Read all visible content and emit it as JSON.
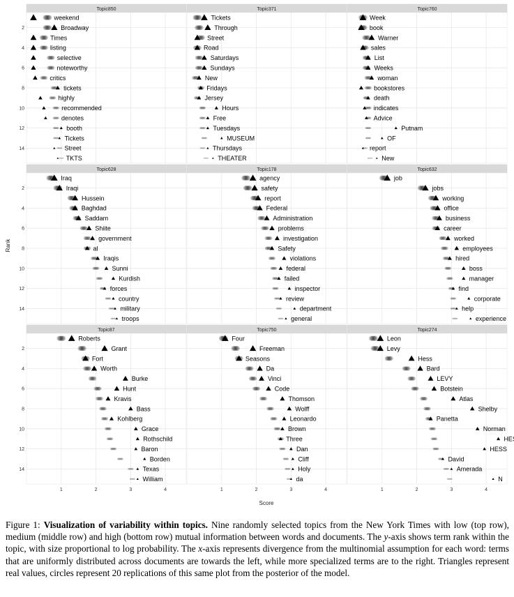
{
  "chart_data": {
    "type": "scatter",
    "xlabel": "Score",
    "ylabel": "Rank",
    "xlim": [
      0,
      4.6
    ],
    "ylim": [
      15.5,
      0.5
    ],
    "x_ticks": [
      1,
      2,
      3,
      4
    ],
    "y_ticks": [
      2,
      4,
      6,
      8,
      10,
      12,
      14
    ],
    "grid": true,
    "legend": "none",
    "markers": {
      "real": "triangle",
      "replications": "circle"
    },
    "panels": [
      {
        "name": "Topic850",
        "terms": [
          {
            "rank": 1,
            "term": "weekend",
            "real": 0.2,
            "rep": 0.6
          },
          {
            "rank": 2,
            "term": "Broadway",
            "real": 0.8,
            "rep": 0.6
          },
          {
            "rank": 3,
            "term": "Times",
            "real": 0.2,
            "rep": 0.5
          },
          {
            "rank": 4,
            "term": "listing",
            "real": 0.2,
            "rep": 0.5
          },
          {
            "rank": 5,
            "term": "selective",
            "real": 0.2,
            "rep": 0.7
          },
          {
            "rank": 6,
            "term": "noteworthy",
            "real": 0.2,
            "rep": 0.7
          },
          {
            "rank": 7,
            "term": "critics",
            "real": 0.25,
            "rep": 0.5
          },
          {
            "rank": 8,
            "term": "tickets",
            "real": 0.9,
            "rep": 0.8
          },
          {
            "rank": 9,
            "term": "highly",
            "real": 0.4,
            "rep": 0.75
          },
          {
            "rank": 10,
            "term": "recommended",
            "real": 0.5,
            "rep": 0.85
          },
          {
            "rank": 11,
            "term": "denotes",
            "real": 0.55,
            "rep": 0.85
          },
          {
            "rank": 12,
            "term": "booth",
            "real": 1.0,
            "rep": 0.85
          },
          {
            "rank": 13,
            "term": "Tickets",
            "real": 0.95,
            "rep": 0.85
          },
          {
            "rank": 14,
            "term": "Street",
            "real": 0.8,
            "rep": 0.95
          },
          {
            "rank": 15,
            "term": "TKTS",
            "real": 0.9,
            "rep": 1.0
          }
        ]
      },
      {
        "name": "Topic371",
        "terms": [
          {
            "rank": 1,
            "term": "Tickets",
            "real": 0.5,
            "rep": 0.3
          },
          {
            "rank": 2,
            "term": "Through",
            "real": 0.6,
            "rep": 0.35
          },
          {
            "rank": 3,
            "term": "Street",
            "real": 0.3,
            "rep": 0.4
          },
          {
            "rank": 4,
            "term": "Road",
            "real": 0.3,
            "rep": 0.3
          },
          {
            "rank": 5,
            "term": "Saturdays",
            "real": 0.5,
            "rep": 0.35
          },
          {
            "rank": 6,
            "term": "Sundays",
            "real": 0.5,
            "rep": 0.35
          },
          {
            "rank": 7,
            "term": "New",
            "real": 0.35,
            "rep": 0.25
          },
          {
            "rank": 8,
            "term": "Fridays",
            "real": 0.4,
            "rep": 0.4
          },
          {
            "rank": 9,
            "term": "Jersey",
            "real": 0.35,
            "rep": 0.3
          },
          {
            "rank": 10,
            "term": "Hours",
            "real": 0.85,
            "rep": 0.45
          },
          {
            "rank": 11,
            "term": "Free",
            "real": 0.6,
            "rep": 0.45
          },
          {
            "rank": 12,
            "term": "Tuesdays",
            "real": 0.6,
            "rep": 0.45
          },
          {
            "rank": 13,
            "term": "MUSEUM",
            "real": 1.0,
            "rep": 0.5
          },
          {
            "rank": 14,
            "term": "Thursdays",
            "real": 0.6,
            "rep": 0.45
          },
          {
            "rank": 15,
            "term": "THEATER",
            "real": 0.75,
            "rep": 0.55
          }
        ]
      },
      {
        "name": "Topic760",
        "terms": [
          {
            "rank": 1,
            "term": "Week",
            "real": 0.45,
            "rep": 0.45
          },
          {
            "rank": 2,
            "term": "book",
            "real": 0.4,
            "rep": 0.45
          },
          {
            "rank": 3,
            "term": "Warner",
            "real": 0.7,
            "rep": 0.55
          },
          {
            "rank": 4,
            "term": "sales",
            "real": 0.45,
            "rep": 0.5
          },
          {
            "rank": 5,
            "term": "List",
            "real": 0.6,
            "rep": 0.55
          },
          {
            "rank": 6,
            "term": "Weeks",
            "real": 0.6,
            "rep": 0.55
          },
          {
            "rank": 7,
            "term": "woman",
            "real": 0.7,
            "rep": 0.6
          },
          {
            "rank": 8,
            "term": "bookstores",
            "real": 0.4,
            "rep": 0.6
          },
          {
            "rank": 9,
            "term": "death",
            "real": 0.6,
            "rep": 0.55
          },
          {
            "rank": 10,
            "term": "indicates",
            "real": 0.5,
            "rep": 0.6
          },
          {
            "rank": 11,
            "term": "Advice",
            "real": 0.55,
            "rep": 0.6
          },
          {
            "rank": 12,
            "term": "Putnam",
            "real": 1.4,
            "rep": 0.6
          },
          {
            "rank": 13,
            "term": "OF",
            "real": 1.0,
            "rep": 0.6
          },
          {
            "rank": 14,
            "term": "report",
            "real": 0.45,
            "rep": 0.5
          },
          {
            "rank": 15,
            "term": "New",
            "real": 0.85,
            "rep": 0.65
          }
        ]
      },
      {
        "name": "Topic628",
        "terms": [
          {
            "rank": 1,
            "term": "Iraq",
            "real": 0.8,
            "rep": 0.7
          },
          {
            "rank": 2,
            "term": "Iraqi",
            "real": 0.95,
            "rep": 0.9
          },
          {
            "rank": 3,
            "term": "Hussein",
            "real": 1.4,
            "rep": 1.3
          },
          {
            "rank": 4,
            "term": "Baghdad",
            "real": 1.4,
            "rep": 1.35
          },
          {
            "rank": 5,
            "term": "Saddam",
            "real": 1.5,
            "rep": 1.45
          },
          {
            "rank": 6,
            "term": "Shiite",
            "real": 1.8,
            "rep": 1.65
          },
          {
            "rank": 7,
            "term": "government",
            "real": 1.9,
            "rep": 1.75
          },
          {
            "rank": 8,
            "term": "al",
            "real": 1.75,
            "rep": 1.75
          },
          {
            "rank": 9,
            "term": "Iraqis",
            "real": 2.05,
            "rep": 1.95
          },
          {
            "rank": 10,
            "term": "Sunni",
            "real": 2.3,
            "rep": 2.0
          },
          {
            "rank": 11,
            "term": "Kurdish",
            "real": 2.5,
            "rep": 2.1
          },
          {
            "rank": 12,
            "term": "forces",
            "real": 2.25,
            "rep": 2.2
          },
          {
            "rank": 13,
            "term": "country",
            "real": 2.5,
            "rep": 2.35
          },
          {
            "rank": 14,
            "term": "military",
            "real": 2.55,
            "rep": 2.45
          },
          {
            "rank": 15,
            "term": "troops",
            "real": 2.6,
            "rep": 2.5
          }
        ]
      },
      {
        "name": "Topic178",
        "terms": [
          {
            "rank": 1,
            "term": "agency",
            "real": 1.9,
            "rep": 1.7
          },
          {
            "rank": 2,
            "term": "safety",
            "real": 1.95,
            "rep": 1.75
          },
          {
            "rank": 3,
            "term": "report",
            "real": 2.05,
            "rep": 1.95
          },
          {
            "rank": 4,
            "term": "Federal",
            "real": 2.1,
            "rep": 2.0
          },
          {
            "rank": 5,
            "term": "Administration",
            "real": 2.3,
            "rep": 2.15
          },
          {
            "rank": 6,
            "term": "problems",
            "real": 2.45,
            "rep": 2.25
          },
          {
            "rank": 7,
            "term": "investigation",
            "real": 2.6,
            "rep": 2.35
          },
          {
            "rank": 8,
            "term": "Safety",
            "real": 2.45,
            "rep": 2.35
          },
          {
            "rank": 9,
            "term": "violations",
            "real": 2.8,
            "rep": 2.45
          },
          {
            "rank": 10,
            "term": "federal",
            "real": 2.7,
            "rep": 2.5
          },
          {
            "rank": 11,
            "term": "failed",
            "real": 2.65,
            "rep": 2.55
          },
          {
            "rank": 12,
            "term": "inspector",
            "real": 2.95,
            "rep": 2.55
          },
          {
            "rank": 13,
            "term": "review",
            "real": 2.7,
            "rep": 2.6
          },
          {
            "rank": 14,
            "term": "department",
            "real": 3.1,
            "rep": 2.65
          },
          {
            "rank": 15,
            "term": "general",
            "real": 2.85,
            "rep": 2.7
          }
        ]
      },
      {
        "name": "Topic632",
        "terms": [
          {
            "rank": 1,
            "term": "job",
            "real": 1.15,
            "rep": 1.05
          },
          {
            "rank": 2,
            "term": "jobs",
            "real": 2.25,
            "rep": 2.15
          },
          {
            "rank": 3,
            "term": "working",
            "real": 2.55,
            "rep": 2.45
          },
          {
            "rank": 4,
            "term": "office",
            "real": 2.6,
            "rep": 2.5
          },
          {
            "rank": 5,
            "term": "business",
            "real": 2.65,
            "rep": 2.55
          },
          {
            "rank": 6,
            "term": "career",
            "real": 2.6,
            "rep": 2.55
          },
          {
            "rank": 7,
            "term": "worked",
            "real": 2.9,
            "rep": 2.75
          },
          {
            "rank": 8,
            "term": "employees",
            "real": 3.15,
            "rep": 2.8
          },
          {
            "rank": 9,
            "term": "hired",
            "real": 2.95,
            "rep": 2.85
          },
          {
            "rank": 10,
            "term": "boss",
            "real": 3.35,
            "rep": 2.9
          },
          {
            "rank": 11,
            "term": "manager",
            "real": 3.35,
            "rep": 2.95
          },
          {
            "rank": 12,
            "term": "find",
            "real": 3.05,
            "rep": 3.0
          },
          {
            "rank": 13,
            "term": "corporate",
            "real": 3.5,
            "rep": 3.05
          },
          {
            "rank": 14,
            "term": "help",
            "real": 3.15,
            "rep": 3.05
          },
          {
            "rank": 15,
            "term": "experience",
            "real": 3.55,
            "rep": 3.1
          }
        ]
      },
      {
        "name": "Topic87",
        "terms": [
          {
            "rank": 1,
            "term": "Roberts",
            "real": 1.3,
            "rep": 1.0
          },
          {
            "rank": 2,
            "term": "Grant",
            "real": 2.25,
            "rep": 1.6
          },
          {
            "rank": 3,
            "term": "Fort",
            "real": 1.7,
            "rep": 1.7
          },
          {
            "rank": 4,
            "term": "Worth",
            "real": 1.95,
            "rep": 1.75
          },
          {
            "rank": 5,
            "term": "Burke",
            "real": 2.85,
            "rep": 1.9
          },
          {
            "rank": 6,
            "term": "Hunt",
            "real": 2.6,
            "rep": 2.05
          },
          {
            "rank": 7,
            "term": "Kravis",
            "real": 2.35,
            "rep": 2.1
          },
          {
            "rank": 8,
            "term": "Bass",
            "real": 3.0,
            "rep": 2.2
          },
          {
            "rank": 9,
            "term": "Kohlberg",
            "real": 2.45,
            "rep": 2.25
          },
          {
            "rank": 10,
            "term": "Grace",
            "real": 3.15,
            "rep": 2.35
          },
          {
            "rank": 11,
            "term": "Rothschild",
            "real": 3.2,
            "rep": 2.4
          },
          {
            "rank": 12,
            "term": "Baron",
            "real": 3.15,
            "rep": 2.5
          },
          {
            "rank": 13,
            "term": "Borden",
            "real": 3.4,
            "rep": 2.7
          },
          {
            "rank": 14,
            "term": "Texas",
            "real": 3.2,
            "rep": 3.0
          },
          {
            "rank": 15,
            "term": "William",
            "real": 3.2,
            "rep": 3.05
          }
        ]
      },
      {
        "name": "Topic750",
        "terms": [
          {
            "rank": 1,
            "term": "Four",
            "real": 1.1,
            "rep": 1.05
          },
          {
            "rank": 2,
            "term": "Freeman",
            "real": 1.9,
            "rep": 1.4
          },
          {
            "rank": 3,
            "term": "Seasons",
            "real": 1.5,
            "rep": 1.5
          },
          {
            "rank": 4,
            "term": "Da",
            "real": 2.1,
            "rep": 1.8
          },
          {
            "rank": 5,
            "term": "Vinci",
            "real": 2.15,
            "rep": 1.9
          },
          {
            "rank": 6,
            "term": "Code",
            "real": 2.35,
            "rep": 2.0
          },
          {
            "rank": 7,
            "term": "Thomson",
            "real": 2.75,
            "rep": 2.2
          },
          {
            "rank": 8,
            "term": "Wolff",
            "real": 2.95,
            "rep": 2.4
          },
          {
            "rank": 9,
            "term": "Leonardo",
            "real": 2.8,
            "rep": 2.5
          },
          {
            "rank": 10,
            "term": "Brown",
            "real": 2.75,
            "rep": 2.6
          },
          {
            "rank": 11,
            "term": "Three",
            "real": 2.7,
            "rep": 2.7
          },
          {
            "rank": 12,
            "term": "Dan",
            "real": 3.0,
            "rep": 2.75
          },
          {
            "rank": 13,
            "term": "Cliff",
            "real": 3.05,
            "rep": 2.85
          },
          {
            "rank": 14,
            "term": "Holy",
            "real": 3.05,
            "rep": 2.9
          },
          {
            "rank": 15,
            "term": "da",
            "real": 3.0,
            "rep": 2.95
          }
        ]
      },
      {
        "name": "Topic274",
        "terms": [
          {
            "rank": 1,
            "term": "Leon",
            "real": 0.95,
            "rep": 0.75
          },
          {
            "rank": 2,
            "term": "Levy",
            "real": 0.95,
            "rep": 0.8
          },
          {
            "rank": 3,
            "term": "Hess",
            "real": 1.85,
            "rep": 1.2
          },
          {
            "rank": 4,
            "term": "Bard",
            "real": 2.1,
            "rep": 1.7
          },
          {
            "rank": 5,
            "term": "LEVY",
            "real": 2.4,
            "rep": 1.85
          },
          {
            "rank": 6,
            "term": "Botstein",
            "real": 2.5,
            "rep": 1.95
          },
          {
            "rank": 7,
            "term": "Atlas",
            "real": 3.05,
            "rep": 2.2
          },
          {
            "rank": 8,
            "term": "Shelby",
            "real": 3.6,
            "rep": 2.3
          },
          {
            "rank": 9,
            "term": "Panetta",
            "real": 2.4,
            "rep": 2.35
          },
          {
            "rank": 10,
            "term": "Norman",
            "real": 3.75,
            "rep": 2.45
          },
          {
            "rank": 11,
            "term": "HESS",
            "real": 4.35,
            "rep": 2.5
          },
          {
            "rank": 12,
            "term": "HESS",
            "real": 3.95,
            "rep": 2.55
          },
          {
            "rank": 13,
            "term": "David",
            "real": 2.75,
            "rep": 2.7
          },
          {
            "rank": 14,
            "term": "Amerada",
            "real": 3.0,
            "rep": 2.85
          },
          {
            "rank": 15,
            "term": "N",
            "real": 4.2,
            "rep": 2.95
          }
        ]
      }
    ]
  },
  "caption": {
    "label": "Figure 1: ",
    "title": "Visualization of variability within topics.",
    "text1": " Nine randomly selected topics from the New York Times with low (top row), medium (middle row) and high (bottom row) mutual information between words and documents. The ",
    "y_var": "y",
    "text2": "-axis shows term rank within the topic, with size proportional to log probability. The ",
    "x_var": "x",
    "text3": "-axis represents divergence from the multinomial assumption for each word: terms that are uniformly distributed across documents are towards the left, while more specialized terms are to the right. Triangles represent real values, circles represent 20 replications of this same plot from the posterior of the model."
  }
}
